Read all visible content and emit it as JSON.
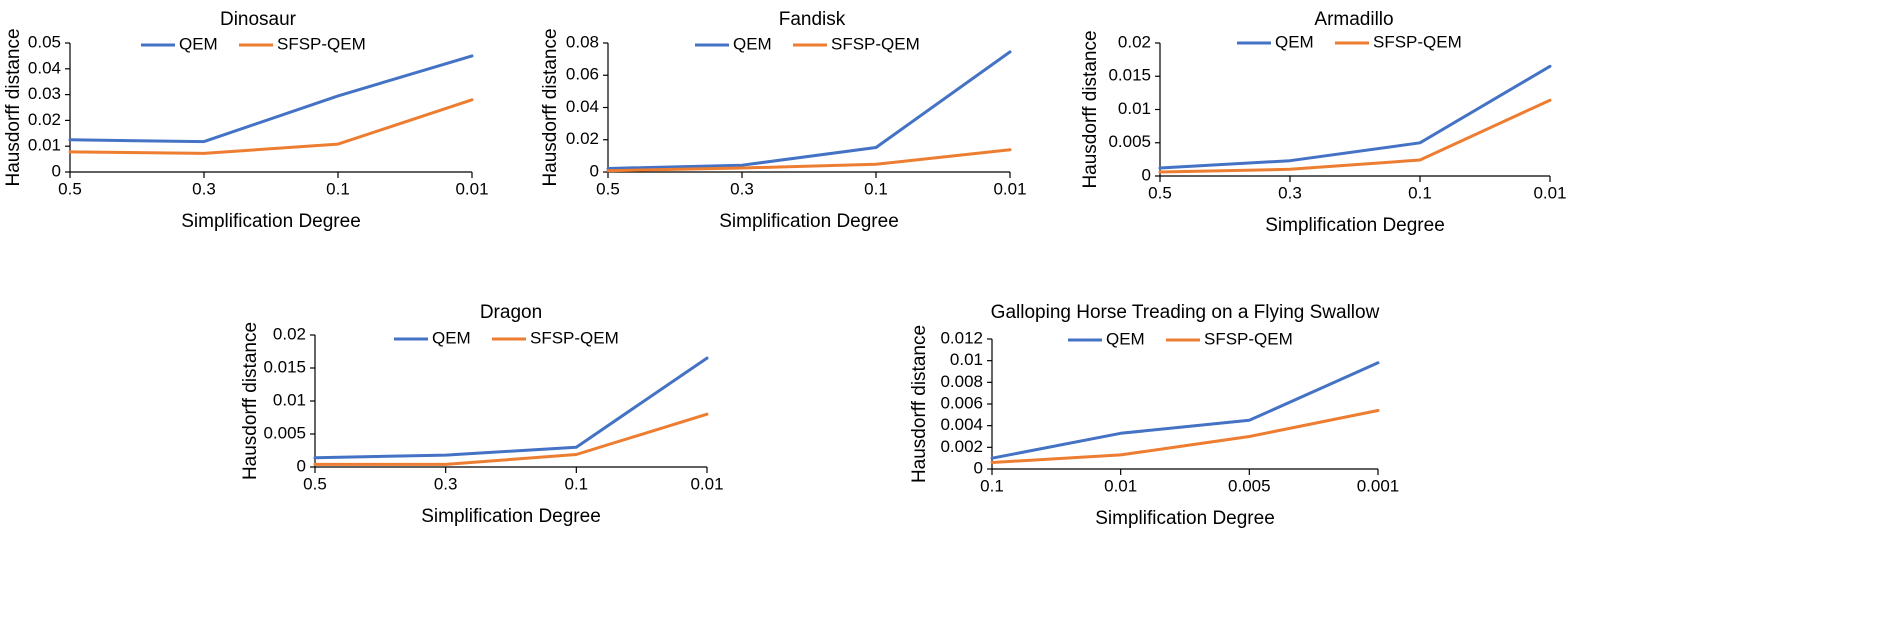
{
  "colors": {
    "series_1": "#4472c4",
    "series_2": "#ed7d31",
    "axis": "#000000",
    "text": "#000000"
  },
  "chart_data": [
    {
      "type": "line",
      "title": "Dinosaur",
      "xlabel": "Simplification Degree",
      "ylabel": "Hausdorff distance",
      "categories": [
        "0.5",
        "0.3",
        "0.1",
        "0.01"
      ],
      "yticks": [
        "0",
        "0.01",
        "0.02",
        "0.03",
        "0.04",
        "0.05"
      ],
      "ylim": [
        0,
        0.05
      ],
      "series": [
        {
          "name": "QEM",
          "values": [
            0.0125,
            0.0118,
            0.0295,
            0.045
          ]
        },
        {
          "name": "SFSP-QEM",
          "values": [
            0.0078,
            0.0072,
            0.0108,
            0.028
          ]
        }
      ]
    },
    {
      "type": "line",
      "title": "Fandisk",
      "xlabel": "Simplification Degree",
      "ylabel": "Hausdorff distance",
      "categories": [
        "0.5",
        "0.3",
        "0.1",
        "0.01"
      ],
      "yticks": [
        "0",
        "0.02",
        "0.04",
        "0.06",
        "0.08"
      ],
      "ylim": [
        0,
        0.08
      ],
      "series": [
        {
          "name": "QEM",
          "values": [
            0.0022,
            0.0042,
            0.0152,
            0.0745
          ]
        },
        {
          "name": "SFSP-QEM",
          "values": [
            0.0008,
            0.0025,
            0.0048,
            0.0138
          ]
        }
      ]
    },
    {
      "type": "line",
      "title": "Armadillo",
      "xlabel": "Simplification Degree",
      "ylabel": "Hausdorff distance",
      "categories": [
        "0.5",
        "0.3",
        "0.1",
        "0.01"
      ],
      "yticks": [
        "0",
        "0.005",
        "0.01",
        "0.015",
        "0.02"
      ],
      "ylim": [
        0,
        0.02
      ],
      "series": [
        {
          "name": "QEM",
          "values": [
            0.0012,
            0.0023,
            0.005,
            0.0165
          ]
        },
        {
          "name": "SFSP-QEM",
          "values": [
            0.0006,
            0.001,
            0.0024,
            0.0114
          ]
        }
      ]
    },
    {
      "type": "line",
      "title": "Dragon",
      "xlabel": "Simplification Degree",
      "ylabel": "Hausdorff distance",
      "categories": [
        "0.5",
        "0.3",
        "0.1",
        "0.01"
      ],
      "yticks": [
        "0",
        "0.005",
        "0.01",
        "0.015",
        "0.02"
      ],
      "ylim": [
        0,
        0.02
      ],
      "series": [
        {
          "name": "QEM",
          "values": [
            0.0014,
            0.0018,
            0.003,
            0.0165
          ]
        },
        {
          "name": "SFSP-QEM",
          "values": [
            0.0004,
            0.0004,
            0.0019,
            0.008
          ]
        }
      ]
    },
    {
      "type": "line",
      "title": "Galloping Horse Treading on a Flying Swallow",
      "xlabel": "Simplification Degree",
      "ylabel": "Hausdorff distance",
      "categories": [
        "0.1",
        "0.01",
        "0.005",
        "0.001"
      ],
      "yticks": [
        "0",
        "0.002",
        "0.004",
        "0.006",
        "0.008",
        "0.01",
        "0.012"
      ],
      "ylim": [
        0,
        0.012
      ],
      "series": [
        {
          "name": "QEM",
          "values": [
            0.001,
            0.0033,
            0.0045,
            0.0098
          ]
        },
        {
          "name": "SFSP-QEM",
          "values": [
            0.0006,
            0.0013,
            0.003,
            0.0054
          ]
        }
      ]
    }
  ]
}
